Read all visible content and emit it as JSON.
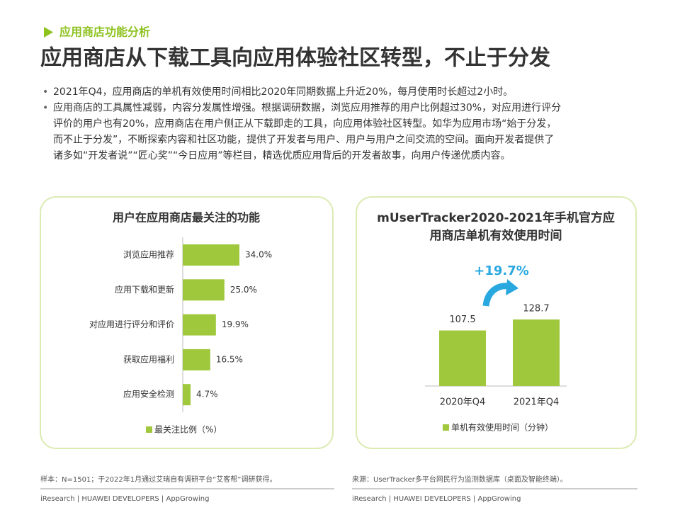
{
  "header": {
    "section": "应用商店功能分析",
    "title": "应用商店从下载工具向应用体验社区转型，不止于分发"
  },
  "bullets": [
    [
      "2021年Q4，应用商店的单机有效使用时间相比2020年同期数据上升近20%，每月使用时长超过2小时。"
    ],
    [
      "应用商店的工具属性减弱，内容分发属性增强。根据调研数据，浏览应用推荐的用户比例超过30%，对应用进行评分",
      "评价的用户也有20%，应用商店在用户侧正从下载即走的工具，向应用体验社区转型。如华为应用市场“始于分发，",
      "而不止于分发”，不断探索内容和社区功能，提供了开发者与用户、用户与用户之间交流的空间。面向开发者提供了",
      "诸多如“开发者说”“匠心奖”“今日应用”等栏目，精选优质应用背后的开发者故事，向用户传递优质内容。"
    ]
  ],
  "chart_data": [
    {
      "type": "hbar",
      "title": [
        "用户在应用商店最关注的功能"
      ],
      "categories": [
        "浏览应用推荐",
        "应用下载和更新",
        "对应用进行评分和评价",
        "获取应用福利",
        "应用安全检测"
      ],
      "series": [
        {
          "name": "最关注比例（%）",
          "color": "#a0c83c",
          "values": [
            34.0,
            25.0,
            19.9,
            16.5,
            4.7
          ],
          "value_labels": [
            "34.0%",
            "25.0%",
            "19.9%",
            "16.5%",
            "4.7%"
          ]
        }
      ]
    },
    {
      "type": "bar",
      "title": [
        "mUserTracker2020-2021年手机官方应",
        "用商店单机有效使用时间"
      ],
      "categories": [
        "2020年Q4",
        "2021年Q4"
      ],
      "series": [
        {
          "name": "单机有效使用时间（分钟）",
          "color": "#a0c83c",
          "values": [
            107.5,
            128.7
          ]
        }
      ],
      "annotation": "+19.7%"
    }
  ],
  "footer": {
    "left_note": "样本：N=1501；于2022年1月通过艾瑞自有调研平台“艾客帮”调研获得。",
    "left_source": "iResearch | HUAWEI DEVELOPERS | AppGrowing",
    "right_note": "来源：UserTracker多平台网民行为监测数据库（桌面及智能终端）。",
    "right_source": "iResearch | HUAWEI DEVELOPERS | AppGrowing"
  }
}
